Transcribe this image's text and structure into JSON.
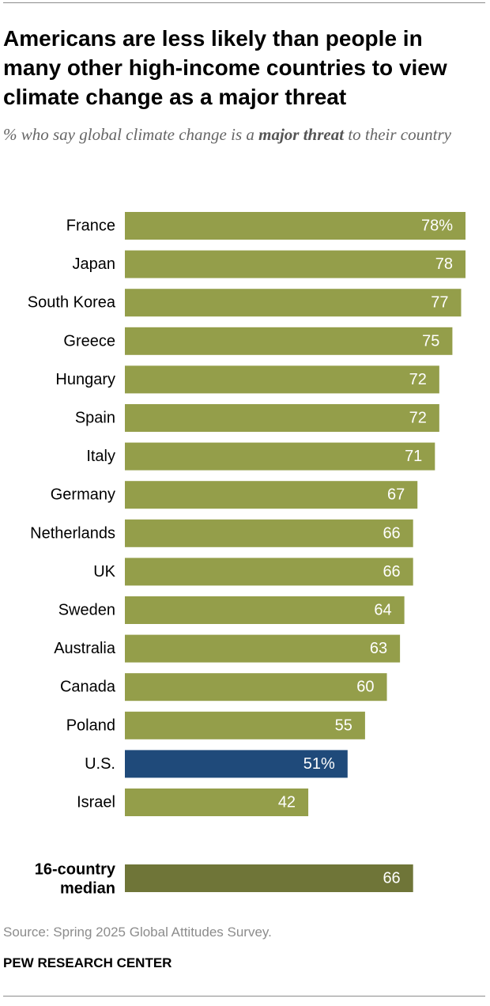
{
  "title": "Americans are less likely than people in many other high-income countries to view climate change as a major threat",
  "subtitle_before": "% who say global climate change is a ",
  "subtitle_emphasis": "major threat",
  "subtitle_after": " to their country",
  "source": "Source: Spring 2025 Global Attitudes Survey.",
  "brand": "PEW RESEARCH CENTER",
  "colors": {
    "bar": "#949e4a",
    "highlight": "#1f4a7a",
    "median": "#6f7538"
  },
  "chart_data": {
    "type": "bar",
    "orientation": "horizontal",
    "unit": "%",
    "xlim": [
      0,
      78
    ],
    "grid": false,
    "legend": "none",
    "categories": [
      "France",
      "Japan",
      "South Korea",
      "Greece",
      "Hungary",
      "Spain",
      "Italy",
      "Germany",
      "Netherlands",
      "UK",
      "Sweden",
      "Australia",
      "Canada",
      "Poland",
      "U.S.",
      "Israel"
    ],
    "values": [
      78,
      78,
      77,
      75,
      72,
      72,
      71,
      67,
      66,
      66,
      64,
      63,
      60,
      55,
      51,
      42
    ],
    "value_labels": [
      "78%",
      "78",
      "77",
      "75",
      "72",
      "72",
      "71",
      "67",
      "66",
      "66",
      "64",
      "63",
      "60",
      "55",
      "51%",
      "42"
    ],
    "highlight": "U.S.",
    "median": {
      "label_lines": [
        "16-country",
        "median"
      ],
      "value": 66,
      "value_label": "66"
    }
  }
}
